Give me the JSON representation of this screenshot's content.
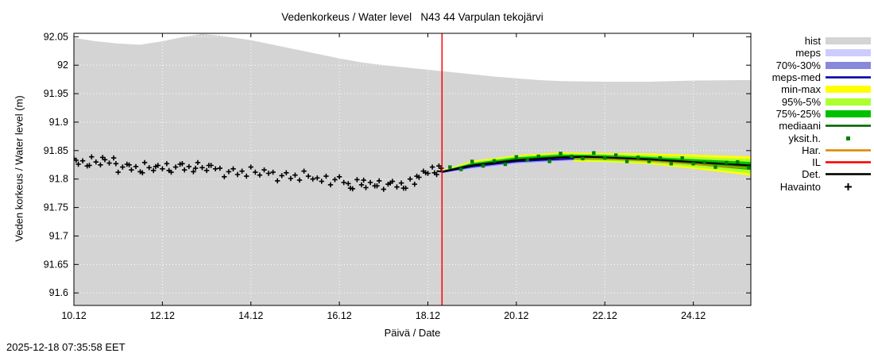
{
  "title": "Vedenkorkeus / Water level   N43 44 Varpulan tekojärvi",
  "ylabel": "Veden korkeus / Water level (m)",
  "xlabel": "Päivä / Date",
  "timestamp": "2025-12-18 07:35:58 EET",
  "chart_data": {
    "type": "line",
    "x_range": [
      10,
      25.3
    ],
    "y_range": [
      91.578,
      92.056
    ],
    "x_ticks": [
      {
        "v": 10,
        "label": "10.12"
      },
      {
        "v": 12,
        "label": "12.12"
      },
      {
        "v": 14,
        "label": "14.12"
      },
      {
        "v": 16,
        "label": "16.12"
      },
      {
        "v": 18,
        "label": "18.12"
      },
      {
        "v": 20,
        "label": "20.12"
      },
      {
        "v": 22,
        "label": "22.12"
      },
      {
        "v": 24,
        "label": "24.12"
      }
    ],
    "y_ticks": [
      {
        "v": 92.05,
        "label": "92.05"
      },
      {
        "v": 92.0,
        "label": "92"
      },
      {
        "v": 91.95,
        "label": "91.95"
      },
      {
        "v": 91.9,
        "label": "91.9"
      },
      {
        "v": 91.85,
        "label": "91.85"
      },
      {
        "v": 91.8,
        "label": "91.8"
      },
      {
        "v": 91.75,
        "label": "91.75"
      },
      {
        "v": 91.7,
        "label": "91.7"
      },
      {
        "v": 91.65,
        "label": "91.65"
      },
      {
        "v": 91.6,
        "label": "91.6"
      }
    ],
    "now_line_x": 18.32,
    "colors": {
      "hist": "#d4d4d4",
      "meps": "#ccccff",
      "band_70_30": "#8888dd",
      "meps_med": "#0000a0",
      "min_max": "#ffff00",
      "band_95_5": "#adff2f",
      "band_75_25": "#00c000",
      "mediaani": "#006400",
      "yksit": "#008000",
      "har": "#dd8800",
      "il": "#ff0000",
      "det": "#000000",
      "havainto": "#000000",
      "now_line": "#ff0000",
      "grid": "#ffffff"
    },
    "hist_upper": [
      [
        10,
        92.048
      ],
      [
        10.5,
        92.042
      ],
      [
        11,
        92.038
      ],
      [
        11.5,
        92.036
      ],
      [
        12,
        92.042
      ],
      [
        12.5,
        92.05
      ],
      [
        12.9,
        92.055
      ],
      [
        13.3,
        92.052
      ],
      [
        14,
        92.044
      ],
      [
        14.5,
        92.036
      ],
      [
        15,
        92.028
      ],
      [
        15.5,
        92.02
      ],
      [
        16,
        92.012
      ],
      [
        16.5,
        92.005
      ],
      [
        17,
        92.0
      ],
      [
        17.5,
        91.996
      ],
      [
        18,
        91.992
      ],
      [
        18.5,
        91.988
      ],
      [
        19,
        91.984
      ],
      [
        19.5,
        91.98
      ],
      [
        20,
        91.977
      ],
      [
        20.5,
        91.974
      ],
      [
        21,
        91.972
      ],
      [
        22,
        91.971
      ],
      [
        23,
        91.971
      ],
      [
        24,
        91.973
      ],
      [
        25.3,
        91.974
      ]
    ],
    "bands": [
      {
        "name": "min-max",
        "color": "#ffff00",
        "points": [
          [
            18.32,
            91.81,
            91.816
          ],
          [
            19,
            91.819,
            91.832
          ],
          [
            20,
            91.827,
            91.842
          ],
          [
            21,
            91.831,
            91.847
          ],
          [
            22,
            91.83,
            91.846
          ],
          [
            23,
            91.826,
            91.845
          ],
          [
            24,
            91.818,
            91.843
          ],
          [
            25.3,
            91.806,
            91.84
          ]
        ]
      },
      {
        "name": "95%-5%",
        "color": "#adff2f",
        "points": [
          [
            18.32,
            91.811,
            91.815
          ],
          [
            19,
            91.82,
            91.83
          ],
          [
            20,
            91.829,
            91.84
          ],
          [
            21,
            91.833,
            91.845
          ],
          [
            22,
            91.832,
            91.844
          ],
          [
            23,
            91.828,
            91.842
          ],
          [
            24,
            91.821,
            91.839
          ],
          [
            25.3,
            91.81,
            91.835
          ]
        ]
      },
      {
        "name": "meps",
        "color": "#ccccff",
        "points": [
          [
            18.32,
            91.81,
            91.815
          ],
          [
            19,
            91.817,
            91.828
          ],
          [
            20,
            91.826,
            91.838
          ],
          [
            20.7,
            91.829,
            91.84
          ],
          [
            21.3,
            91.831,
            91.84
          ]
        ]
      },
      {
        "name": "70%-30%",
        "color": "#8888dd",
        "points": [
          [
            18.32,
            91.811,
            91.813
          ],
          [
            19,
            91.819,
            91.824
          ],
          [
            20,
            91.828,
            91.833
          ],
          [
            20.7,
            91.831,
            91.836
          ],
          [
            21.3,
            91.833,
            91.838
          ]
        ]
      },
      {
        "name": "75%-25%",
        "color": "#00c000",
        "points": [
          [
            18.32,
            91.812,
            91.814
          ],
          [
            19,
            91.822,
            91.828
          ],
          [
            20,
            91.831,
            91.838
          ],
          [
            21,
            91.835,
            91.843
          ],
          [
            22,
            91.834,
            91.842
          ],
          [
            23,
            91.831,
            91.839
          ],
          [
            24,
            91.825,
            91.835
          ],
          [
            25.3,
            91.816,
            91.83
          ]
        ]
      }
    ],
    "lines": [
      {
        "name": "IL",
        "color": "#ff0000",
        "width": 1.5,
        "points": [
          [
            18.32,
            91.812
          ],
          [
            19,
            91.824
          ],
          [
            20,
            91.833
          ],
          [
            20.8,
            91.836
          ]
        ]
      },
      {
        "name": "Har.",
        "color": "#dd8800",
        "width": 1.5,
        "points": [
          [
            18.32,
            91.812
          ],
          [
            19,
            91.823
          ],
          [
            20,
            91.832
          ],
          [
            21,
            91.837
          ],
          [
            22,
            91.836
          ],
          [
            23,
            91.832
          ],
          [
            24,
            91.826
          ],
          [
            25.3,
            91.819
          ]
        ]
      },
      {
        "name": "meps-med",
        "color": "#0000a0",
        "width": 1.8,
        "points": [
          [
            18.32,
            91.812
          ],
          [
            19,
            91.822
          ],
          [
            20,
            91.831
          ],
          [
            20.7,
            91.834
          ],
          [
            21.3,
            91.836
          ]
        ]
      },
      {
        "name": "mediaani",
        "color": "#006400",
        "width": 1.8,
        "points": [
          [
            18.32,
            91.813
          ],
          [
            19,
            91.825
          ],
          [
            20,
            91.834
          ],
          [
            21,
            91.839
          ],
          [
            21.5,
            91.84
          ],
          [
            22,
            91.838
          ],
          [
            23,
            91.834
          ],
          [
            24,
            91.829
          ],
          [
            25.3,
            91.823
          ]
        ]
      },
      {
        "name": "Det.",
        "color": "#000000",
        "width": 2,
        "points": [
          [
            18.2,
            91.814
          ],
          [
            18.32,
            91.813
          ],
          [
            19,
            91.824
          ],
          [
            20,
            91.833
          ],
          [
            21,
            91.838
          ],
          [
            21.6,
            91.839
          ],
          [
            22,
            91.838
          ],
          [
            23,
            91.835
          ],
          [
            24,
            91.83
          ],
          [
            25.3,
            91.824
          ]
        ]
      }
    ],
    "simulations": [
      [
        18.5,
        91.821
      ],
      [
        18.75,
        91.817
      ],
      [
        19.0,
        91.831
      ],
      [
        19.25,
        91.823
      ],
      [
        19.5,
        91.832
      ],
      [
        19.75,
        91.826
      ],
      [
        20.0,
        91.839
      ],
      [
        20.25,
        91.834
      ],
      [
        20.5,
        91.84
      ],
      [
        20.75,
        91.831
      ],
      [
        21.0,
        91.845
      ],
      [
        21.25,
        91.84
      ],
      [
        21.5,
        91.836
      ],
      [
        21.75,
        91.846
      ],
      [
        22.0,
        91.837
      ],
      [
        22.25,
        91.842
      ],
      [
        22.5,
        91.831
      ],
      [
        22.75,
        91.838
      ],
      [
        23.0,
        91.831
      ],
      [
        23.25,
        91.837
      ],
      [
        23.5,
        91.827
      ],
      [
        23.75,
        91.837
      ],
      [
        24.0,
        91.827
      ],
      [
        24.25,
        91.829
      ],
      [
        24.5,
        91.821
      ],
      [
        24.75,
        91.829
      ],
      [
        25.0,
        91.83
      ],
      [
        25.25,
        91.82
      ]
    ],
    "observations": [
      [
        10.0,
        91.836
      ],
      [
        10.1,
        91.826
      ],
      [
        10.2,
        91.832
      ],
      [
        10.3,
        91.823
      ],
      [
        10.4,
        91.839
      ],
      [
        10.5,
        91.83
      ],
      [
        10.6,
        91.825
      ],
      [
        10.7,
        91.834
      ],
      [
        10.8,
        91.828
      ],
      [
        10.9,
        91.837
      ],
      [
        11.0,
        91.812
      ],
      [
        11.1,
        91.821
      ],
      [
        11.2,
        91.826
      ],
      [
        11.3,
        91.816
      ],
      [
        11.4,
        91.822
      ],
      [
        11.5,
        91.813
      ],
      [
        11.6,
        91.829
      ],
      [
        11.7,
        91.82
      ],
      [
        11.8,
        91.815
      ],
      [
        11.9,
        91.824
      ],
      [
        12.0,
        91.818
      ],
      [
        12.1,
        91.827
      ],
      [
        12.2,
        91.812
      ],
      [
        12.3,
        91.821
      ],
      [
        12.4,
        91.826
      ],
      [
        12.5,
        91.816
      ],
      [
        12.6,
        91.822
      ],
      [
        12.7,
        91.813
      ],
      [
        12.8,
        91.829
      ],
      [
        12.9,
        91.82
      ],
      [
        13.0,
        91.815
      ],
      [
        13.1,
        91.824
      ],
      [
        13.2,
        91.818
      ],
      [
        13.3,
        91.819
      ],
      [
        13.4,
        91.804
      ],
      [
        13.5,
        91.813
      ],
      [
        13.6,
        91.818
      ],
      [
        13.7,
        91.808
      ],
      [
        13.8,
        91.814
      ],
      [
        13.9,
        91.805
      ],
      [
        14.0,
        91.821
      ],
      [
        14.1,
        91.812
      ],
      [
        14.2,
        91.807
      ],
      [
        14.3,
        91.816
      ],
      [
        14.4,
        91.81
      ],
      [
        14.5,
        91.812
      ],
      [
        14.6,
        91.797
      ],
      [
        14.7,
        91.806
      ],
      [
        14.8,
        91.811
      ],
      [
        14.9,
        91.801
      ],
      [
        15.0,
        91.807
      ],
      [
        15.1,
        91.798
      ],
      [
        15.2,
        91.814
      ],
      [
        15.3,
        91.805
      ],
      [
        15.4,
        91.8
      ],
      [
        15.5,
        91.802
      ],
      [
        15.6,
        91.796
      ],
      [
        15.7,
        91.805
      ],
      [
        15.8,
        91.79
      ],
      [
        15.9,
        91.799
      ],
      [
        16.0,
        91.804
      ],
      [
        16.1,
        91.794
      ],
      [
        16.2,
        91.792
      ],
      [
        16.3,
        91.783
      ],
      [
        16.4,
        91.799
      ],
      [
        16.5,
        91.79
      ],
      [
        16.6,
        91.785
      ],
      [
        16.7,
        91.794
      ],
      [
        16.8,
        91.788
      ],
      [
        16.9,
        91.797
      ],
      [
        17.0,
        91.782
      ],
      [
        17.1,
        91.791
      ],
      [
        17.2,
        91.796
      ],
      [
        17.3,
        91.786
      ],
      [
        17.4,
        91.793
      ],
      [
        17.5,
        91.784
      ],
      [
        17.6,
        91.8
      ],
      [
        17.7,
        91.791
      ],
      [
        17.8,
        91.803
      ],
      [
        17.9,
        91.814
      ],
      [
        18.0,
        91.81
      ],
      [
        18.1,
        91.821
      ],
      [
        18.2,
        91.808
      ],
      [
        18.3,
        91.819
      ],
      [
        10.05,
        91.833
      ],
      [
        10.35,
        91.824
      ],
      [
        10.65,
        91.838
      ],
      [
        10.95,
        91.827
      ],
      [
        11.25,
        91.825
      ],
      [
        11.55,
        91.811
      ],
      [
        11.85,
        91.822
      ],
      [
        12.15,
        91.815
      ],
      [
        12.45,
        91.827
      ],
      [
        12.75,
        91.819
      ],
      [
        13.05,
        91.824
      ],
      [
        16.25,
        91.784
      ],
      [
        16.55,
        91.798
      ],
      [
        16.85,
        91.788
      ],
      [
        17.15,
        91.793
      ],
      [
        17.45,
        91.784
      ],
      [
        17.75,
        91.805
      ],
      [
        17.95,
        91.811
      ],
      [
        18.15,
        91.811
      ],
      [
        18.25,
        91.823
      ]
    ],
    "legend": [
      {
        "label": "hist",
        "type": "band",
        "color": "#d4d4d4"
      },
      {
        "label": "meps",
        "type": "band",
        "color": "#ccccff"
      },
      {
        "label": "70%-30%",
        "type": "band",
        "color": "#8888dd"
      },
      {
        "label": "meps-med",
        "type": "line",
        "color": "#0000a0"
      },
      {
        "label": "min-max",
        "type": "band",
        "color": "#ffff00"
      },
      {
        "label": "95%-5%",
        "type": "band",
        "color": "#adff2f"
      },
      {
        "label": "75%-25%",
        "type": "band",
        "color": "#00c000"
      },
      {
        "label": "mediaani",
        "type": "line",
        "color": "#006400"
      },
      {
        "label": "yksit.h.",
        "type": "square",
        "color": "#008000"
      },
      {
        "label": "Har.",
        "type": "line",
        "color": "#dd8800"
      },
      {
        "label": "IL",
        "type": "line",
        "color": "#ff0000"
      },
      {
        "label": "Det.",
        "type": "line",
        "color": "#000000"
      },
      {
        "label": "Havainto",
        "type": "plus",
        "color": "#000000"
      }
    ]
  }
}
